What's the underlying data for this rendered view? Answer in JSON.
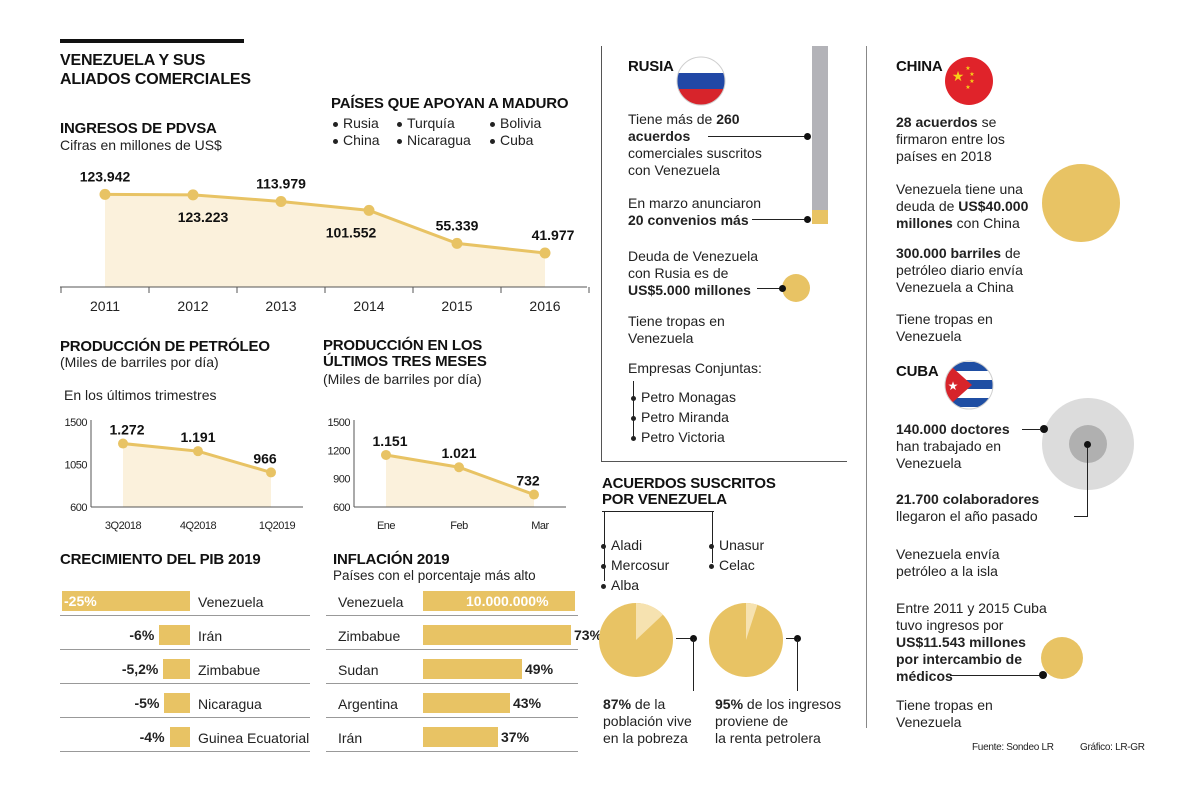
{
  "title": {
    "line1": "VENEZUELA Y SUS",
    "line2": "ALIADOS COMERCIALES"
  },
  "allies": {
    "heading": "PAÍSES QUE APOYAN A MADURO",
    "countries": [
      "Rusia",
      "China",
      "Turquía",
      "Nicaragua",
      "Bolivia",
      "Cuba"
    ]
  },
  "colors": {
    "gold": "#e8c364",
    "light_gold": "#fbf1dc",
    "grey_bar": "#b3b3b8",
    "circle_grey": "#dcdcdc",
    "circle_dark": "#b0b0b0"
  },
  "chart_data": [
    {
      "type": "area",
      "title": "INGRESOS DE PDVSA",
      "subtitle": "Cifras en millones de US$",
      "x": [
        "2011",
        "2012",
        "2013",
        "2014",
        "2015",
        "2016"
      ],
      "values": [
        123.942,
        123.223,
        113.979,
        101.552,
        55.339,
        41.977
      ],
      "labels": [
        "123.942",
        "123.223",
        "113.979",
        "101.552",
        "55.339",
        "41.977"
      ],
      "ylim": [
        0,
        130
      ]
    },
    {
      "type": "area",
      "title": "PRODUCCIÓN DE PETRÓLEO",
      "subtitle": "(Miles de barriles por día)",
      "note": "En los últimos trimestres",
      "x": [
        "3Q2018",
        "4Q2018",
        "1Q2019"
      ],
      "values": [
        1272,
        1191,
        966
      ],
      "labels": [
        "1.272",
        "1.191",
        "966"
      ],
      "yticks": [
        "1500",
        "1050",
        "600"
      ],
      "ylim": [
        600,
        1500
      ]
    },
    {
      "type": "area",
      "title_line1": "PRODUCCIÓN EN LOS",
      "title_line2": "ÚLTIMOS TRES MESES",
      "subtitle": "(Miles de barriles por día)",
      "x": [
        "Ene",
        "Feb",
        "Mar"
      ],
      "values": [
        1151,
        1021,
        732
      ],
      "labels": [
        "1.151",
        "1.021",
        "732"
      ],
      "yticks": [
        "1500",
        "1200",
        "900",
        "600"
      ],
      "ylim": [
        600,
        1500
      ]
    },
    {
      "type": "bar",
      "title": "CRECIMIENTO DEL PIB 2019",
      "categories": [
        "Venezuela",
        "Irán",
        "Zimbabue",
        "Nicaragua",
        "Guinea Ecuatorial"
      ],
      "values": [
        -25,
        -6,
        -5.2,
        -5,
        -4
      ],
      "labels": [
        "-25%",
        "-6%",
        "-5,2%",
        "-5%",
        "-4%"
      ]
    },
    {
      "type": "bar",
      "title": "INFLACIÓN 2019",
      "subtitle": "Países con el porcentaje más alto",
      "categories": [
        "Venezuela",
        "Zimbabue",
        "Sudan",
        "Argentina",
        "Irán"
      ],
      "values": [
        10000000,
        73,
        49,
        43,
        37
      ],
      "labels": [
        "10.000.000%",
        "73%",
        "49%",
        "43%",
        "37%"
      ]
    },
    {
      "type": "pie",
      "title": "87% de la población vive en la pobreza",
      "values": [
        87,
        13
      ]
    },
    {
      "type": "pie",
      "title": "95% de los ingresos proviene de la renta petrolera",
      "values": [
        95,
        5
      ]
    }
  ],
  "russia": {
    "name": "RUSIA",
    "p1_a": "Tiene más de ",
    "p1_b": "260",
    "p1_c": "acuerdos",
    "p1_d": "comerciales suscritos",
    "p1_e": "con Venezuela",
    "p2_a": "En marzo anunciaron",
    "p2_b": "20 convenios más",
    "agreements_total": 260,
    "agreements_new": 20,
    "p3_a": "Deuda de Venezuela",
    "p3_b": "con Rusia es de",
    "p3_c": "US$5.000 millones",
    "p4_a": "Tiene tropas en",
    "p4_b": "Venezuela",
    "companies_heading": "Empresas Conjuntas:",
    "companies": [
      "Petro Monagas",
      "Petro Miranda",
      "Petro Victoria"
    ]
  },
  "agreements": {
    "heading_line1": "ACUERDOS SUSCRITOS",
    "heading_line2": "POR VENEZUELA",
    "left": [
      "Aladi",
      "Mercosur",
      "Alba"
    ],
    "right": [
      "Unasur",
      "Celac"
    ]
  },
  "pies": {
    "poverty_a": "87%",
    "poverty_b": " de la",
    "poverty_c": "población vive",
    "poverty_d": "en la pobreza",
    "oil_a": "95%",
    "oil_b": " de los ingresos",
    "oil_c": "proviene de",
    "oil_d": "la renta petrolera"
  },
  "china": {
    "name": "CHINA",
    "p1_a": "28 acuerdos",
    "p1_b": " se",
    "p1_c": "firmaron entre los",
    "p1_d": "países en 2018",
    "p2_a": "Venezuela tiene una",
    "p2_b": "deuda de ",
    "p2_c": "US$40.000",
    "p2_d": "millones",
    "p2_e": " con China",
    "p3_a": "300.000 barriles",
    "p3_b": " de",
    "p3_c": "petróleo diario envía",
    "p3_d": "Venezuela a China",
    "p4_a": "Tiene tropas en",
    "p4_b": "Venezuela"
  },
  "cuba": {
    "name": "CUBA",
    "p1_a": "140.000 doctores",
    "p1_b": "han trabajado en",
    "p1_c": "Venezuela",
    "p2_a": "21.700 colaboradores",
    "p2_b": "llegaron el año pasado",
    "p3_a": "Venezuela envía",
    "p3_b": "petróleo a la isla",
    "p4_a": "Entre 2011 y 2015 Cuba",
    "p4_b": "tuvo ingresos por",
    "p4_c": "US$11.543 millones",
    "p4_d": "por intercambio de",
    "p4_e": "médicos",
    "p5_a": "Tiene tropas en",
    "p5_b": "Venezuela"
  },
  "footer": {
    "source": "Fuente: Sondeo LR",
    "graphic": "Gráfico: LR-GR"
  }
}
